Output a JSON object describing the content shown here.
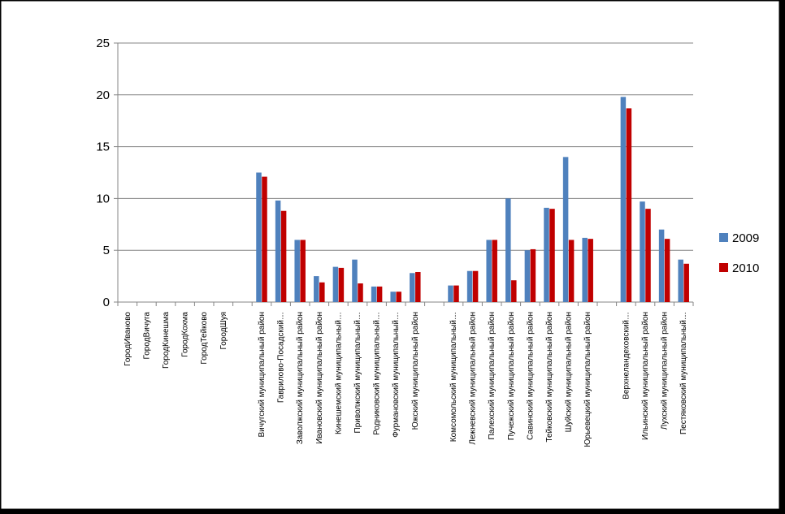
{
  "chart_data": {
    "type": "bar",
    "ylim": [
      0,
      25
    ],
    "yticks": [
      0,
      5,
      10,
      15,
      20,
      25
    ],
    "grid": true,
    "legend_position": "right",
    "categories": [
      "ГородИваново",
      "ГородВичуга",
      "ГородКинешма",
      "ГородКохма",
      "ГородТейково",
      "ГородШуя",
      "",
      "Вичугский муниципальный район",
      "Гаврилово-Посадский…",
      "Заволжский муниципальный район",
      "Ивановский муниципальный район",
      "Кинешемский муниципальный…",
      "Приволжский муниципальный…",
      "Родниковский муниципальный…",
      "Фурмановский муниципальный…",
      "Южский муниципальный район",
      "",
      "Комсомольский муниципальный…",
      "Лежневский муниципальный район",
      "Палехский муниципальный район",
      "Пучежский муниципальный район",
      "Савинский муниципальный район",
      "Тейковский муниципальный район",
      "Шуйский муниципальный район",
      "Юрьевецкий муниципальный район",
      "",
      "Верхнеландеховский…",
      "Ильинский муниципальный район",
      "Лухский муниципальный район",
      "Пестяковский муниципальный…"
    ],
    "series": [
      {
        "name": "2009",
        "color": "#4F81BD",
        "values": [
          null,
          null,
          null,
          null,
          null,
          null,
          null,
          12.5,
          9.8,
          6.0,
          2.5,
          3.4,
          4.1,
          1.5,
          1.0,
          2.8,
          null,
          1.6,
          3.0,
          6.0,
          10.0,
          5.0,
          9.1,
          14.0,
          6.2,
          null,
          19.8,
          9.7,
          7.0,
          4.1
        ]
      },
      {
        "name": "2010",
        "color": "#C00000",
        "values": [
          null,
          null,
          null,
          null,
          null,
          null,
          null,
          12.1,
          8.8,
          6.0,
          1.9,
          3.3,
          1.8,
          1.5,
          1.0,
          2.9,
          null,
          1.6,
          3.0,
          6.0,
          2.1,
          5.1,
          9.0,
          6.0,
          6.1,
          null,
          18.7,
          9.0,
          6.1,
          3.7
        ]
      }
    ]
  }
}
